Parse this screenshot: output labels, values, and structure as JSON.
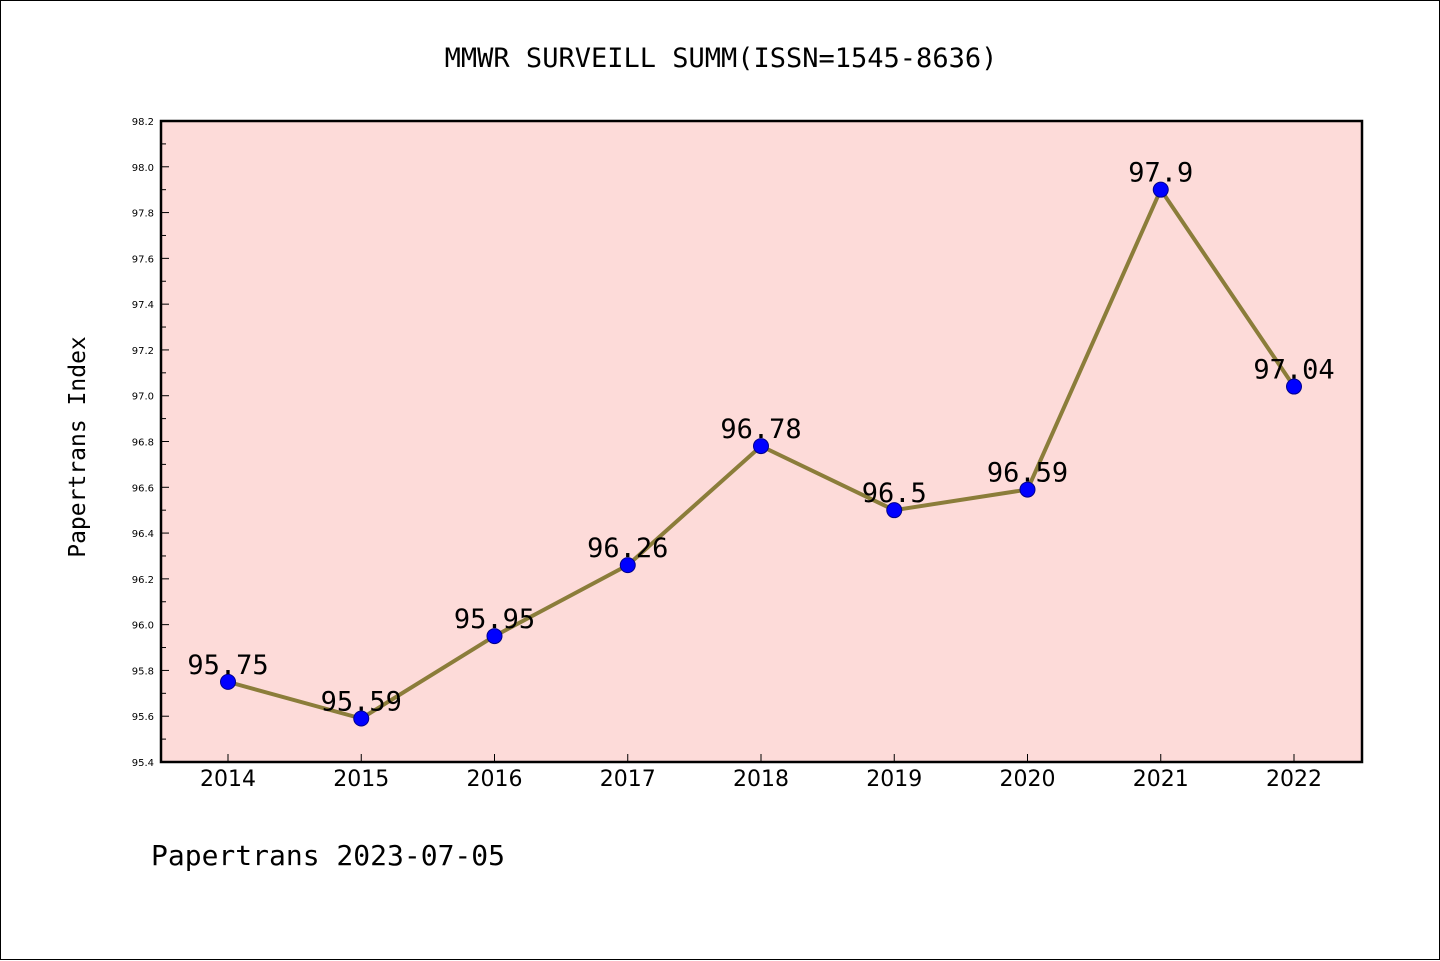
{
  "chart_data": {
    "type": "line",
    "title": "MMWR SURVEILL SUMM(ISSN=1545-8636)",
    "xlabel": "",
    "ylabel": "Papertrans Index",
    "categories": [
      "2014",
      "2015",
      "2016",
      "2017",
      "2018",
      "2019",
      "2020",
      "2021",
      "2022"
    ],
    "series": [
      {
        "values": [
          95.75,
          95.59,
          95.95,
          96.26,
          96.78,
          96.5,
          96.59,
          97.9,
          97.04
        ],
        "data_labels": [
          "95.75",
          "95.59",
          "95.95",
          "96.26",
          "96.78",
          "96.5",
          "96.59",
          "97.9",
          "97.04"
        ]
      }
    ],
    "ylim": [
      95.4,
      98.2
    ],
    "yticks": [
      "95.4",
      "95.6",
      "95.8",
      "96.0",
      "96.2",
      "96.4",
      "96.6",
      "96.8",
      "97.0",
      "97.2",
      "97.4",
      "97.6",
      "97.8",
      "98.0",
      "98.2"
    ],
    "grid": false,
    "legend": "none",
    "footer": "Papertrans 2023-07-05"
  },
  "colors": {
    "plot_background": "#fddbd9",
    "line": "#8b7d3a",
    "marker_fill": "#0000ff",
    "marker_edge": "#00008b",
    "axes": "#000000"
  }
}
